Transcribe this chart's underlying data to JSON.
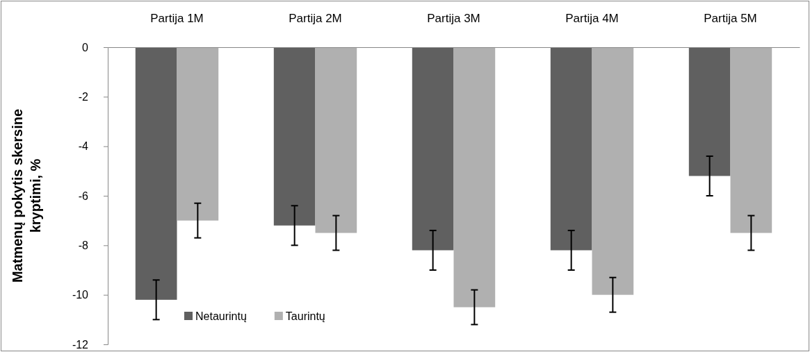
{
  "chart_data": {
    "type": "bar",
    "ylabel": "Matmenų pokytis skersine kryptimi, %",
    "categories": [
      "Partija 1M",
      "Partija 2M",
      "Partija 3M",
      "Partija 4M",
      "Partija 5M"
    ],
    "series": [
      {
        "name": "Netaurintų",
        "color": "#606060",
        "values": [
          -10.2,
          -7.2,
          -8.2,
          -8.2,
          -5.2
        ],
        "errors": [
          0.8,
          0.8,
          0.8,
          0.8,
          0.8
        ]
      },
      {
        "name": "Taurintų",
        "color": "#b0b0b0",
        "values": [
          -7.0,
          -7.5,
          -10.5,
          -10.0,
          -7.5
        ],
        "errors": [
          0.7,
          0.7,
          0.7,
          0.7,
          0.7
        ]
      }
    ],
    "ylim": [
      -12,
      0
    ],
    "yticks": [
      -12,
      -10,
      -8,
      -6,
      -4,
      -2,
      0
    ],
    "grid": false,
    "legend": "bottom left"
  }
}
